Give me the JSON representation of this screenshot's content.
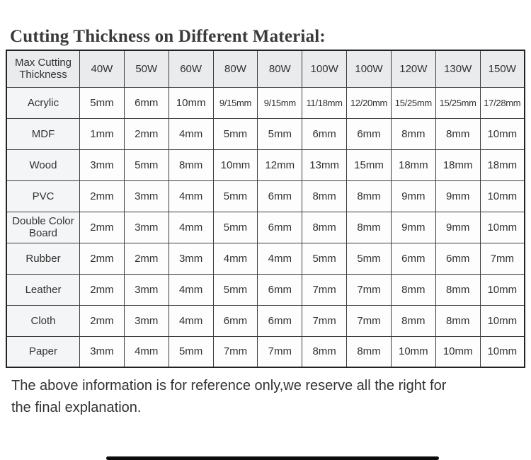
{
  "page": {
    "title": "Cutting Thickness on Different Material:",
    "note": {
      "line1": "The above information is for reference only,we reserve all the right for",
      "line2": "the final explanation."
    }
  },
  "table": {
    "columns": [
      "Max Cutting Thickness",
      "40W",
      "50W",
      "60W",
      "80W",
      "80W",
      "100W",
      "100W",
      "120W",
      "130W",
      "150W"
    ],
    "rows": [
      {
        "material": "Acrylic",
        "values": [
          "5mm",
          "6mm",
          "10mm",
          "9/15mm",
          "9/15mm",
          "11/18mm",
          "12/20mm",
          "15/25mm",
          "15/25mm",
          "17/28mm"
        ]
      },
      {
        "material": "MDF",
        "values": [
          "1mm",
          "2mm",
          "4mm",
          "5mm",
          "5mm",
          "6mm",
          "6mm",
          "8mm",
          "8mm",
          "10mm"
        ]
      },
      {
        "material": "Wood",
        "values": [
          "3mm",
          "5mm",
          "8mm",
          "10mm",
          "12mm",
          "13mm",
          "15mm",
          "18mm",
          "18mm",
          "18mm"
        ]
      },
      {
        "material": "PVC",
        "values": [
          "2mm",
          "3mm",
          "4mm",
          "5mm",
          "6mm",
          "8mm",
          "8mm",
          "9mm",
          "9mm",
          "10mm"
        ]
      },
      {
        "material": "Double Color Board",
        "values": [
          "2mm",
          "3mm",
          "4mm",
          "5mm",
          "6mm",
          "8mm",
          "8mm",
          "9mm",
          "9mm",
          "10mm"
        ]
      },
      {
        "material": "Rubber",
        "values": [
          "2mm",
          "2mm",
          "3mm",
          "4mm",
          "4mm",
          "5mm",
          "5mm",
          "6mm",
          "6mm",
          "7mm"
        ]
      },
      {
        "material": "Leather",
        "values": [
          "2mm",
          "3mm",
          "4mm",
          "5mm",
          "6mm",
          "7mm",
          "7mm",
          "8mm",
          "8mm",
          "10mm"
        ]
      },
      {
        "material": "Cloth",
        "values": [
          "2mm",
          "3mm",
          "4mm",
          "6mm",
          "6mm",
          "7mm",
          "7mm",
          "8mm",
          "8mm",
          "10mm"
        ]
      },
      {
        "material": "Paper",
        "values": [
          "3mm",
          "4mm",
          "5mm",
          "7mm",
          "7mm",
          "8mm",
          "8mm",
          "10mm",
          "10mm",
          "10mm"
        ]
      }
    ]
  },
  "colors": {
    "header_bg": "#e9ebed",
    "material_col_bg": "#f4f5f6",
    "cell_bg": "#fdfdfd",
    "border": "#3d3d3d",
    "text": "#323232"
  }
}
